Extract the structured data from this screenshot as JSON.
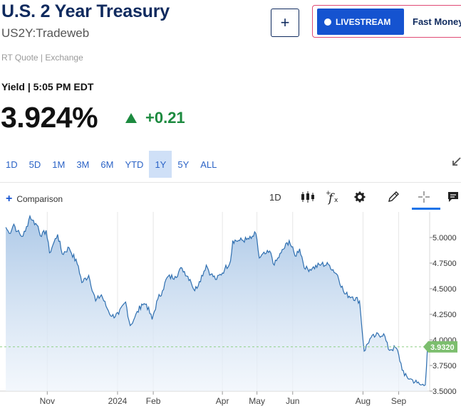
{
  "header": {
    "title": "U.S. 2 Year Treasury",
    "symbol": "US2Y:Tradeweb",
    "add_button": "+",
    "livestream_label": "LIVESTREAM",
    "show_name": "Fast Money",
    "quote_type": "RT Quote | Exchange"
  },
  "quote": {
    "yield_time": "Yield | 5:05 PM EDT",
    "price": "3.924%",
    "change": "+0.21"
  },
  "ranges": [
    "1D",
    "5D",
    "1M",
    "3M",
    "6M",
    "YTD",
    "1Y",
    "5Y",
    "ALL"
  ],
  "active_range": "1Y",
  "toolbar": {
    "comparison_label": "Comparison",
    "interval_label": "1D",
    "icons": [
      "candlestick-icon",
      "function-icon",
      "gear-icon",
      "pencil-icon",
      "crosshair-icon",
      "comment-icon"
    ]
  },
  "colors": {
    "brand": "#0f2a5e",
    "accent": "#1553d0",
    "positive": "#1c8a3f",
    "line": "#2f6fb0",
    "last_badge": "#7cbe6e"
  },
  "chart_data": {
    "type": "area",
    "x_labels": [
      "Nov",
      "2024",
      "Feb",
      "Apr",
      "May",
      "Jun",
      "Aug",
      "Sep"
    ],
    "y_ticks": [
      "5.0000",
      "4.7500",
      "4.5000",
      "4.2500",
      "4.0000",
      "3.7500",
      "3.5000"
    ],
    "ylim": [
      3.5,
      5.25
    ],
    "last_value_label": "3.9320",
    "last_value": 3.932,
    "dates": [
      "2023-09-26",
      "2023-09-29",
      "2023-10-03",
      "2023-10-06",
      "2023-10-10",
      "2023-10-13",
      "2023-10-17",
      "2023-10-19",
      "2023-10-24",
      "2023-10-27",
      "2023-10-31",
      "2023-11-03",
      "2023-11-06",
      "2023-11-10",
      "2023-11-14",
      "2023-11-20",
      "2023-11-28",
      "2023-12-01",
      "2023-12-07",
      "2023-12-13",
      "2023-12-18",
      "2023-12-22",
      "2023-12-27",
      "2024-01-02",
      "2024-01-08",
      "2024-01-12",
      "2024-01-16",
      "2024-01-22",
      "2024-01-26",
      "2024-01-31",
      "2024-02-05",
      "2024-02-09",
      "2024-02-13",
      "2024-02-20",
      "2024-02-26",
      "2024-03-04",
      "2024-03-08",
      "2024-03-12",
      "2024-03-18",
      "2024-03-22",
      "2024-03-27",
      "2024-04-03",
      "2024-04-08",
      "2024-04-10",
      "2024-04-16",
      "2024-04-22",
      "2024-04-26",
      "2024-04-30",
      "2024-05-03",
      "2024-05-08",
      "2024-05-13",
      "2024-05-16",
      "2024-05-22",
      "2024-05-29",
      "2024-06-03",
      "2024-06-07",
      "2024-06-12",
      "2024-06-18",
      "2024-06-26",
      "2024-07-03",
      "2024-07-10",
      "2024-07-16",
      "2024-07-23",
      "2024-07-29",
      "2024-08-02",
      "2024-08-07",
      "2024-08-12",
      "2024-08-19",
      "2024-08-23",
      "2024-08-30",
      "2024-09-06",
      "2024-09-11",
      "2024-09-17",
      "2024-09-20",
      "2024-09-24",
      "2024-09-26"
    ],
    "values": [
      5.1,
      5.04,
      5.13,
      5.06,
      5.01,
      5.06,
      5.21,
      5.17,
      5.11,
      5.01,
      5.07,
      4.85,
      4.93,
      5.03,
      4.84,
      4.9,
      4.72,
      4.56,
      4.63,
      4.38,
      4.44,
      4.33,
      4.23,
      4.25,
      4.37,
      4.14,
      4.22,
      4.35,
      4.35,
      4.2,
      4.4,
      4.48,
      4.61,
      4.62,
      4.7,
      4.59,
      4.48,
      4.57,
      4.73,
      4.64,
      4.59,
      4.69,
      4.77,
      4.97,
      4.97,
      4.98,
      4.99,
      5.04,
      4.8,
      4.84,
      4.85,
      4.73,
      4.85,
      4.97,
      4.82,
      4.89,
      4.69,
      4.7,
      4.74,
      4.73,
      4.63,
      4.45,
      4.42,
      4.38,
      3.89,
      4.01,
      4.04,
      4.06,
      3.91,
      3.92,
      3.65,
      3.62,
      3.58,
      3.56,
      3.56,
      3.93
    ]
  }
}
